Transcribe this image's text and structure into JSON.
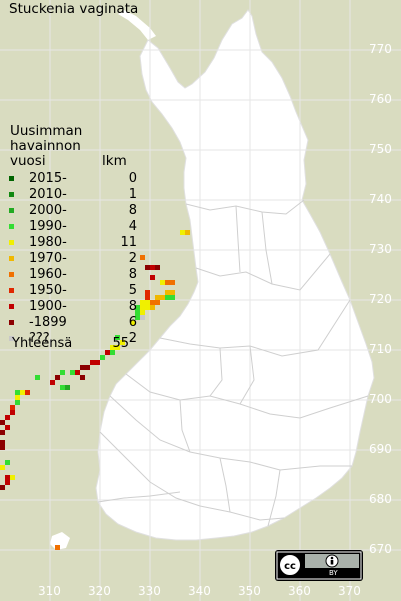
{
  "title": "Stuckenia vaginata",
  "legend": {
    "heading": [
      "Uusimman",
      "havainnon",
      "vuosi"
    ],
    "count_header": "lkm",
    "rows": [
      {
        "label": "2015-",
        "count": "0",
        "color": "#006400"
      },
      {
        "label": "2010-",
        "count": "1",
        "color": "#118811"
      },
      {
        "label": "2000-",
        "count": "8",
        "color": "#22aa22"
      },
      {
        "label": "1990-",
        "count": "4",
        "color": "#33dd33"
      },
      {
        "label": "1980-",
        "count": "11",
        "color": "#f0f000"
      },
      {
        "label": "1970-",
        "count": "2",
        "color": "#f0b800"
      },
      {
        "label": "1960-",
        "count": "8",
        "color": "#f07000"
      },
      {
        "label": "1950-",
        "count": "5",
        "color": "#e02800"
      },
      {
        "label": "1900-",
        "count": "8",
        "color": "#c00000"
      },
      {
        "label": "-1899",
        "count": "6",
        "color": "#8b0000"
      },
      {
        "label": "???",
        "count": "2",
        "color": "#c8c8c8"
      }
    ],
    "total_label": "Yhteensä",
    "total_count": "55"
  },
  "axes": {
    "y_ticks": [
      "770",
      "760",
      "750",
      "740",
      "730",
      "720",
      "710",
      "700",
      "690",
      "680",
      "670"
    ],
    "x_ticks": [
      "310",
      "320",
      "330",
      "340",
      "350",
      "360",
      "370"
    ]
  },
  "license": {
    "badge": "cc-by-icon",
    "text": "BY"
  },
  "colors": {
    "background": "#d9dcc0",
    "land": "#ffffff",
    "grid": "#e6e6e6",
    "border": "#cfcfcf"
  },
  "observations": [
    {
      "e": 326,
      "n": 711,
      "cls": 5
    },
    {
      "e": 328,
      "n": 714,
      "cls": 8
    }
  ]
}
